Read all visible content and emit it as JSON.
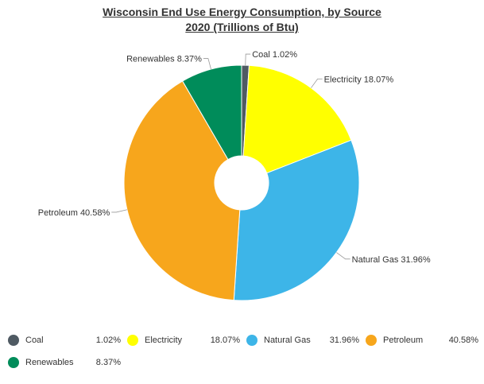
{
  "title_line1": "Wisconsin End Use Energy Consumption, by Source",
  "title_line2": "2020 (Trillions of Btu)",
  "chart_data": {
    "type": "pie",
    "title": "Wisconsin End Use Energy Consumption, by Source 2020 (Trillions of Btu)",
    "unit": "%",
    "categories": [
      "Coal",
      "Electricity",
      "Natural Gas",
      "Petroleum",
      "Renewables"
    ],
    "values": [
      1.02,
      18.07,
      31.96,
      40.58,
      8.37
    ],
    "value_labels": [
      "1.02%",
      "18.07%",
      "31.96%",
      "40.58%",
      "8.37%"
    ],
    "data_labels": [
      "Coal 1.02%",
      "Electricity 18.07%",
      "Natural Gas 31.96%",
      "Petroleum 40.58%",
      "Renewables 8.37%"
    ],
    "colors": [
      "#4f5a63",
      "#ffff00",
      "#3db5e8",
      "#f7a61c",
      "#008c5a"
    ],
    "donut": true,
    "legend_position": "bottom"
  }
}
